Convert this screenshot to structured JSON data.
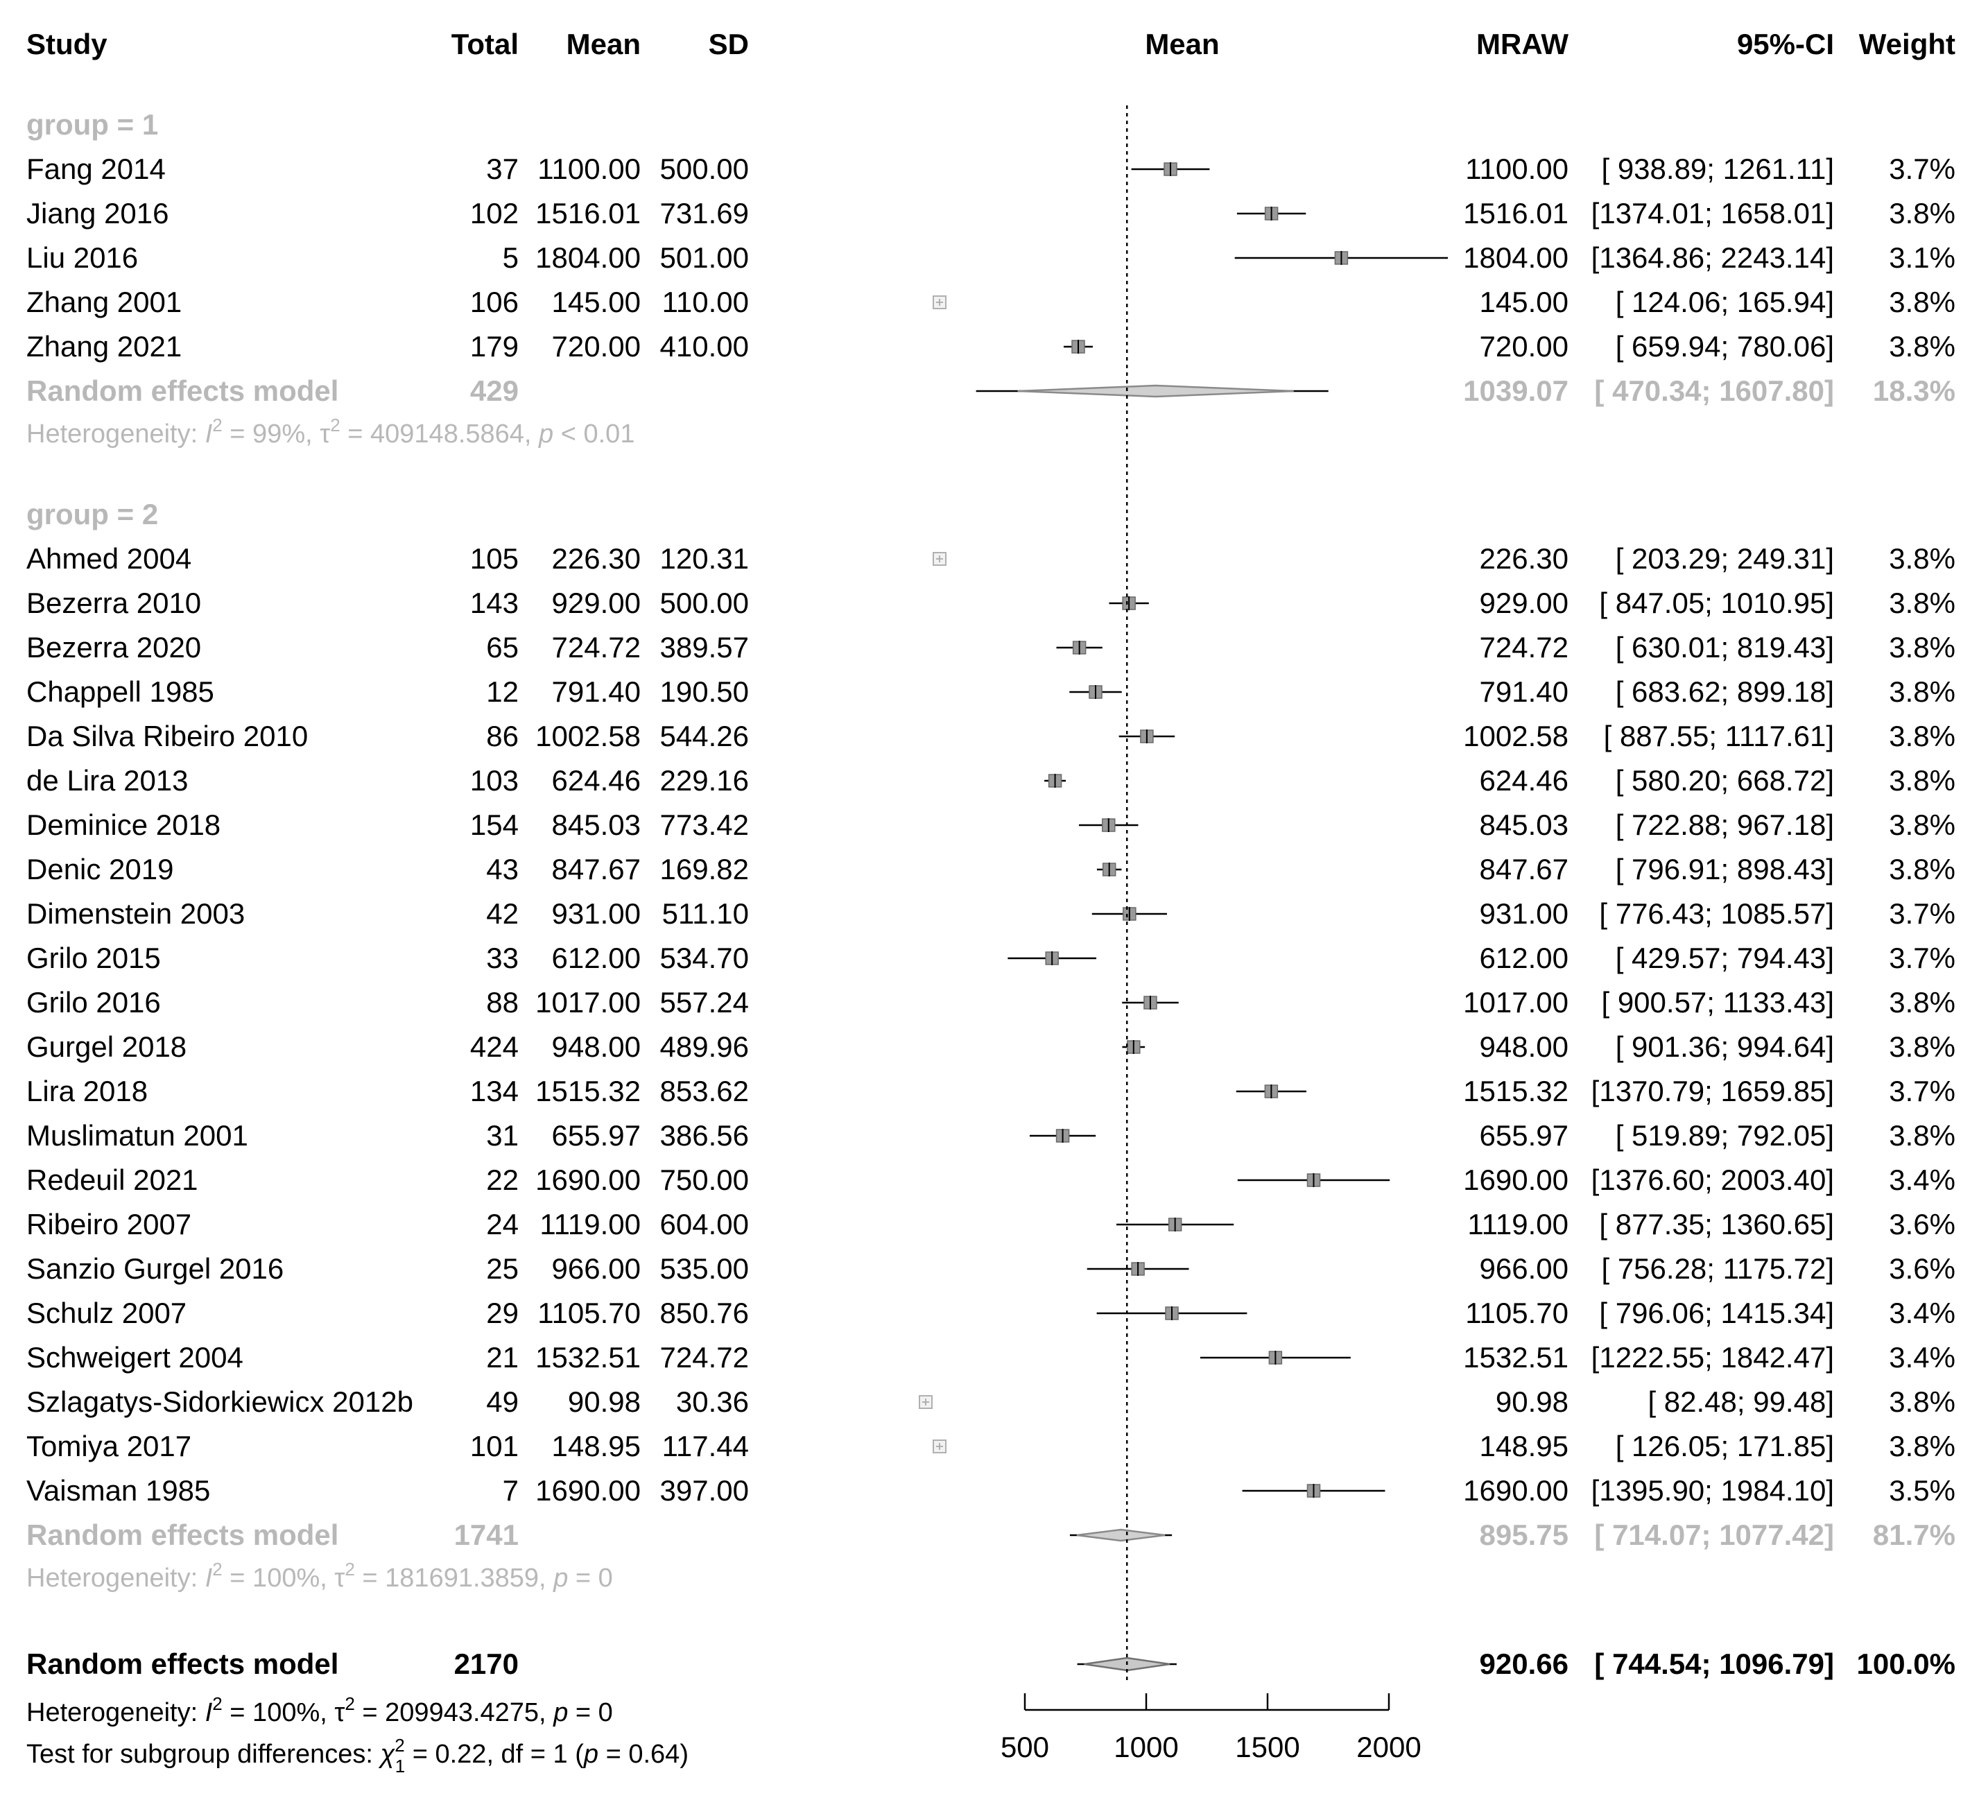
{
  "chart_data": {
    "type": "forest",
    "measure": "MRAW",
    "columns": {
      "study": "Study",
      "total": "Total",
      "mean": "Mean",
      "sd": "SD",
      "plot": "Mean",
      "estimate": "MRAW",
      "ci": "95%-CI",
      "weight": "Weight"
    },
    "xaxis": {
      "min": 500,
      "max": 2000,
      "ticks": [
        "500",
        "1000",
        "1500",
        "2000"
      ],
      "reference_line": 920.66
    },
    "groups": [
      {
        "label": "group = 1",
        "studies": [
          {
            "study": "Fang  2014",
            "total": "37",
            "mean": "1100.00",
            "sd": "500.00",
            "est": "1100.00",
            "ci": "[ 938.89; 1261.11]",
            "weight": "3.7%",
            "value": 1100.0,
            "lower": 938.89,
            "upper": 1261.11
          },
          {
            "study": "Jiang 2016",
            "total": "102",
            "mean": "1516.01",
            "sd": "731.69",
            "est": "1516.01",
            "ci": "[1374.01; 1658.01]",
            "weight": "3.8%",
            "value": 1516.01,
            "lower": 1374.01,
            "upper": 1658.01
          },
          {
            "study": "Liu 2016",
            "total": "5",
            "mean": "1804.00",
            "sd": "501.00",
            "est": "1804.00",
            "ci": "[1364.86; 2243.14]",
            "weight": "3.1%",
            "value": 1804.0,
            "lower": 1364.86,
            "upper": 2243.14
          },
          {
            "study": "Zhang 2001",
            "total": "106",
            "mean": "145.00",
            "sd": "110.00",
            "est": "145.00",
            "ci": "[ 124.06;  165.94]",
            "weight": "3.8%",
            "value": 145.0,
            "lower": 124.06,
            "upper": 165.94
          },
          {
            "study": "Zhang 2021",
            "total": "179",
            "mean": "720.00",
            "sd": "410.00",
            "est": "720.00",
            "ci": "[ 659.94;  780.06]",
            "weight": "3.8%",
            "value": 720.0,
            "lower": 659.94,
            "upper": 780.06
          }
        ],
        "model": {
          "label": "Random effects model",
          "total": "429",
          "est": "1039.07",
          "ci": "[ 470.34; 1607.80]",
          "weight": "18.3%",
          "value": 1039.07,
          "lower": 470.34,
          "upper": 1607.8
        },
        "heterogeneity": {
          "prefix": "Heterogeneity: ",
          "i2_label": "I",
          "i2_sup": "2",
          "i2_value": " = 99%, ",
          "tau_label": "τ",
          "tau_sup": "2",
          "tau_value": " = 409148.5864, ",
          "p_label": "p",
          "p_value": " < 0.01"
        }
      },
      {
        "label": "group = 2",
        "studies": [
          {
            "study": "Ahmed 2004",
            "total": "105",
            "mean": "226.30",
            "sd": "120.31",
            "est": "226.30",
            "ci": "[ 203.29;  249.31]",
            "weight": "3.8%",
            "value": 226.3,
            "lower": 203.29,
            "upper": 249.31
          },
          {
            "study": "Bezerra 2010",
            "total": "143",
            "mean": "929.00",
            "sd": "500.00",
            "est": "929.00",
            "ci": "[ 847.05; 1010.95]",
            "weight": "3.8%",
            "value": 929.0,
            "lower": 847.05,
            "upper": 1010.95
          },
          {
            "study": "Bezerra 2020",
            "total": "65",
            "mean": "724.72",
            "sd": "389.57",
            "est": "724.72",
            "ci": "[ 630.01;  819.43]",
            "weight": "3.8%",
            "value": 724.72,
            "lower": 630.01,
            "upper": 819.43
          },
          {
            "study": "Chappell 1985",
            "total": "12",
            "mean": "791.40",
            "sd": "190.50",
            "est": "791.40",
            "ci": "[ 683.62;  899.18]",
            "weight": "3.8%",
            "value": 791.4,
            "lower": 683.62,
            "upper": 899.18
          },
          {
            "study": "Da Silva Ribeiro 2010",
            "total": "86",
            "mean": "1002.58",
            "sd": "544.26",
            "est": "1002.58",
            "ci": "[ 887.55; 1117.61]",
            "weight": "3.8%",
            "value": 1002.58,
            "lower": 887.55,
            "upper": 1117.61
          },
          {
            "study": "de Lira 2013",
            "total": "103",
            "mean": "624.46",
            "sd": "229.16",
            "est": "624.46",
            "ci": "[ 580.20;  668.72]",
            "weight": "3.8%",
            "value": 624.46,
            "lower": 580.2,
            "upper": 668.72
          },
          {
            "study": "Deminice 2018",
            "total": "154",
            "mean": "845.03",
            "sd": "773.42",
            "est": "845.03",
            "ci": "[ 722.88;  967.18]",
            "weight": "3.8%",
            "value": 845.03,
            "lower": 722.88,
            "upper": 967.18
          },
          {
            "study": "Denic 2019",
            "total": "43",
            "mean": "847.67",
            "sd": "169.82",
            "est": "847.67",
            "ci": "[ 796.91;  898.43]",
            "weight": "3.8%",
            "value": 847.67,
            "lower": 796.91,
            "upper": 898.43
          },
          {
            "study": "Dimenstein 2003",
            "total": "42",
            "mean": "931.00",
            "sd": "511.10",
            "est": "931.00",
            "ci": "[ 776.43; 1085.57]",
            "weight": "3.7%",
            "value": 931.0,
            "lower": 776.43,
            "upper": 1085.57
          },
          {
            "study": "Grilo 2015",
            "total": "33",
            "mean": "612.00",
            "sd": "534.70",
            "est": "612.00",
            "ci": "[ 429.57;  794.43]",
            "weight": "3.7%",
            "value": 612.0,
            "lower": 429.57,
            "upper": 794.43
          },
          {
            "study": "Grilo 2016",
            "total": "88",
            "mean": "1017.00",
            "sd": "557.24",
            "est": "1017.00",
            "ci": "[ 900.57; 1133.43]",
            "weight": "3.8%",
            "value": 1017.0,
            "lower": 900.57,
            "upper": 1133.43
          },
          {
            "study": "Gurgel 2018",
            "total": "424",
            "mean": "948.00",
            "sd": "489.96",
            "est": "948.00",
            "ci": "[ 901.36;  994.64]",
            "weight": "3.8%",
            "value": 948.0,
            "lower": 901.36,
            "upper": 994.64
          },
          {
            "study": "Lira 2018",
            "total": "134",
            "mean": "1515.32",
            "sd": "853.62",
            "est": "1515.32",
            "ci": "[1370.79; 1659.85]",
            "weight": "3.7%",
            "value": 1515.32,
            "lower": 1370.79,
            "upper": 1659.85
          },
          {
            "study": "Muslimatun 2001",
            "total": "31",
            "mean": "655.97",
            "sd": "386.56",
            "est": "655.97",
            "ci": "[ 519.89;  792.05]",
            "weight": "3.8%",
            "value": 655.97,
            "lower": 519.89,
            "upper": 792.05
          },
          {
            "study": "Redeuil 2021",
            "total": "22",
            "mean": "1690.00",
            "sd": "750.00",
            "est": "1690.00",
            "ci": "[1376.60; 2003.40]",
            "weight": "3.4%",
            "value": 1690.0,
            "lower": 1376.6,
            "upper": 2003.4
          },
          {
            "study": "Ribeiro 2007",
            "total": "24",
            "mean": "1119.00",
            "sd": "604.00",
            "est": "1119.00",
            "ci": "[ 877.35; 1360.65]",
            "weight": "3.6%",
            "value": 1119.0,
            "lower": 877.35,
            "upper": 1360.65
          },
          {
            "study": "Sanzio Gurgel 2016",
            "total": "25",
            "mean": "966.00",
            "sd": "535.00",
            "est": "966.00",
            "ci": "[ 756.28; 1175.72]",
            "weight": "3.6%",
            "value": 966.0,
            "lower": 756.28,
            "upper": 1175.72
          },
          {
            "study": "Schulz 2007",
            "total": "29",
            "mean": "1105.70",
            "sd": "850.76",
            "est": "1105.70",
            "ci": "[ 796.06; 1415.34]",
            "weight": "3.4%",
            "value": 1105.7,
            "lower": 796.06,
            "upper": 1415.34
          },
          {
            "study": "Schweigert 2004",
            "total": "21",
            "mean": "1532.51",
            "sd": "724.72",
            "est": "1532.51",
            "ci": "[1222.55; 1842.47]",
            "weight": "3.4%",
            "value": 1532.51,
            "lower": 1222.55,
            "upper": 1842.47
          },
          {
            "study": "Szlagatys-Sidorkiewicx 2012b",
            "total": "49",
            "mean": "90.98",
            "sd": "30.36",
            "est": "90.98",
            "ci": "[  82.48;   99.48]",
            "weight": "3.8%",
            "value": 90.98,
            "lower": 82.48,
            "upper": 99.48
          },
          {
            "study": "Tomiya 2017",
            "total": "101",
            "mean": "148.95",
            "sd": "117.44",
            "est": "148.95",
            "ci": "[ 126.05;  171.85]",
            "weight": "3.8%",
            "value": 148.95,
            "lower": 126.05,
            "upper": 171.85
          },
          {
            "study": "Vaisman 1985",
            "total": "7",
            "mean": "1690.00",
            "sd": "397.00",
            "est": "1690.00",
            "ci": "[1395.90; 1984.10]",
            "weight": "3.5%",
            "value": 1690.0,
            "lower": 1395.9,
            "upper": 1984.1
          }
        ],
        "model": {
          "label": "Random effects model",
          "total": "1741",
          "est": "895.75",
          "ci": "[ 714.07; 1077.42]",
          "weight": "81.7%",
          "value": 895.75,
          "lower": 714.07,
          "upper": 1077.42
        },
        "heterogeneity": {
          "prefix": "Heterogeneity: ",
          "i2_label": "I",
          "i2_sup": "2",
          "i2_value": " = 100%, ",
          "tau_label": "τ",
          "tau_sup": "2",
          "tau_value": " = 181691.3859, ",
          "p_label": "p",
          "p_value": " = 0"
        }
      }
    ],
    "overall": {
      "label": "Random effects model",
      "total": "2170",
      "est": "920.66",
      "ci": "[ 744.54; 1096.79]",
      "weight": "100.0%",
      "value": 920.66,
      "lower": 744.54,
      "upper": 1096.79,
      "heterogeneity": {
        "prefix": "Heterogeneity: ",
        "i2_label": "I",
        "i2_sup": "2",
        "i2_value": " = 100%, ",
        "tau_label": "τ",
        "tau_sup": "2",
        "tau_value": " = 209943.4275, ",
        "p_label": "p",
        "p_value": " = 0"
      },
      "subgroup_test": {
        "prefix": "Test for subgroup differences: ",
        "chi_label": "χ",
        "chi_sup": "2",
        "chi_sub": "1",
        "chi_value": " = 0.22, df = 1 (",
        "p_label": "p",
        "p_value": " = 0.64)"
      }
    }
  }
}
